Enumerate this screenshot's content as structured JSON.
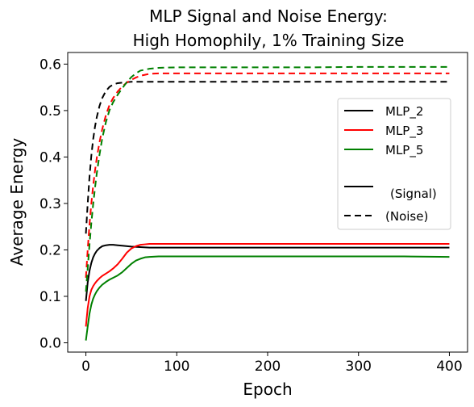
{
  "chart_data": {
    "type": "line",
    "title_line1": "MLP Signal and Noise Energy:",
    "title_line2": "High Homophily, 1% Training Size",
    "xlabel": "Epoch",
    "ylabel": "Average Energy",
    "xlim": [
      -20,
      420
    ],
    "ylim": [
      -0.02,
      0.625
    ],
    "xticks": [
      0,
      100,
      200,
      300,
      400
    ],
    "yticks": [
      0.0,
      0.1,
      0.2,
      0.3,
      0.4,
      0.5,
      0.6
    ],
    "ytick_labels": [
      "0.0",
      "0.1",
      "0.2",
      "0.3",
      "0.4",
      "0.5",
      "0.6"
    ],
    "grid": false,
    "legend_position": "center-right",
    "series": [
      {
        "name": "MLP_2",
        "color": "#000000",
        "kind": "signal",
        "x": [
          0,
          2,
          4,
          6,
          8,
          10,
          12,
          15,
          18,
          22,
          26,
          30,
          35,
          40,
          50,
          60,
          70,
          80,
          100,
          150,
          200,
          250,
          300,
          350,
          400
        ],
        "y": [
          0.09,
          0.13,
          0.155,
          0.172,
          0.184,
          0.192,
          0.198,
          0.204,
          0.208,
          0.21,
          0.211,
          0.211,
          0.21,
          0.209,
          0.207,
          0.206,
          0.205,
          0.205,
          0.205,
          0.205,
          0.205,
          0.205,
          0.205,
          0.205,
          0.205
        ]
      },
      {
        "name": "MLP_3",
        "color": "#ff0000",
        "kind": "signal",
        "x": [
          0,
          2,
          4,
          6,
          8,
          10,
          12,
          15,
          18,
          22,
          26,
          30,
          35,
          40,
          45,
          50,
          55,
          60,
          65,
          70,
          80,
          100,
          150,
          200,
          250,
          300,
          350,
          400
        ],
        "y": [
          0.035,
          0.075,
          0.1,
          0.114,
          0.122,
          0.128,
          0.133,
          0.139,
          0.144,
          0.149,
          0.154,
          0.16,
          0.169,
          0.181,
          0.194,
          0.203,
          0.208,
          0.211,
          0.212,
          0.213,
          0.213,
          0.213,
          0.213,
          0.213,
          0.213,
          0.213,
          0.213,
          0.213
        ]
      },
      {
        "name": "MLP_5",
        "color": "#008000",
        "kind": "signal",
        "x": [
          0,
          2,
          4,
          6,
          8,
          10,
          12,
          15,
          18,
          22,
          26,
          30,
          35,
          40,
          45,
          50,
          55,
          60,
          65,
          70,
          80,
          100,
          150,
          200,
          250,
          300,
          350,
          400
        ],
        "y": [
          0.005,
          0.035,
          0.063,
          0.082,
          0.095,
          0.104,
          0.111,
          0.119,
          0.125,
          0.131,
          0.136,
          0.14,
          0.145,
          0.152,
          0.161,
          0.17,
          0.177,
          0.181,
          0.184,
          0.185,
          0.186,
          0.186,
          0.186,
          0.186,
          0.186,
          0.186,
          0.186,
          0.185
        ]
      },
      {
        "name": "MLP_2",
        "color": "#000000",
        "kind": "noise",
        "x": [
          0,
          2,
          4,
          6,
          8,
          10,
          12,
          15,
          18,
          22,
          26,
          30,
          35,
          40,
          45,
          50,
          60,
          70,
          80,
          100,
          150,
          200,
          250,
          300,
          350,
          400
        ],
        "y": [
          0.235,
          0.3,
          0.358,
          0.403,
          0.438,
          0.465,
          0.486,
          0.51,
          0.527,
          0.542,
          0.551,
          0.556,
          0.559,
          0.56,
          0.561,
          0.562,
          0.562,
          0.562,
          0.562,
          0.562,
          0.562,
          0.562,
          0.562,
          0.562,
          0.562,
          0.562
        ]
      },
      {
        "name": "MLP_3",
        "color": "#ff0000",
        "kind": "noise",
        "x": [
          0,
          2,
          4,
          6,
          8,
          10,
          12,
          15,
          18,
          22,
          26,
          30,
          35,
          40,
          45,
          50,
          55,
          60,
          70,
          80,
          100,
          150,
          200,
          250,
          300,
          350,
          400
        ],
        "y": [
          0.14,
          0.2,
          0.255,
          0.3,
          0.338,
          0.37,
          0.398,
          0.432,
          0.46,
          0.49,
          0.512,
          0.527,
          0.541,
          0.552,
          0.56,
          0.566,
          0.571,
          0.575,
          0.579,
          0.58,
          0.58,
          0.58,
          0.58,
          0.58,
          0.58,
          0.58,
          0.58
        ]
      },
      {
        "name": "MLP_5",
        "color": "#008000",
        "kind": "noise",
        "x": [
          0,
          2,
          4,
          6,
          8,
          10,
          12,
          15,
          18,
          22,
          26,
          30,
          35,
          40,
          45,
          50,
          55,
          60,
          70,
          80,
          100,
          150,
          200,
          250,
          300,
          350,
          400
        ],
        "y": [
          0.11,
          0.16,
          0.212,
          0.258,
          0.298,
          0.333,
          0.365,
          0.405,
          0.44,
          0.475,
          0.501,
          0.518,
          0.534,
          0.548,
          0.561,
          0.572,
          0.58,
          0.586,
          0.59,
          0.592,
          0.593,
          0.593,
          0.593,
          0.593,
          0.594,
          0.594,
          0.594
        ]
      }
    ],
    "legend": [
      {
        "label": "MLP_2",
        "color": "#000000",
        "style": "solid"
      },
      {
        "label": "MLP_3",
        "color": "#ff0000",
        "style": "solid"
      },
      {
        "label": "MLP_5",
        "color": "#008000",
        "style": "solid"
      },
      {
        "label": "(Signal)",
        "color": "#000000",
        "style": "solid"
      },
      {
        "label": "(Noise)",
        "color": "#000000",
        "style": "dashed"
      }
    ]
  }
}
